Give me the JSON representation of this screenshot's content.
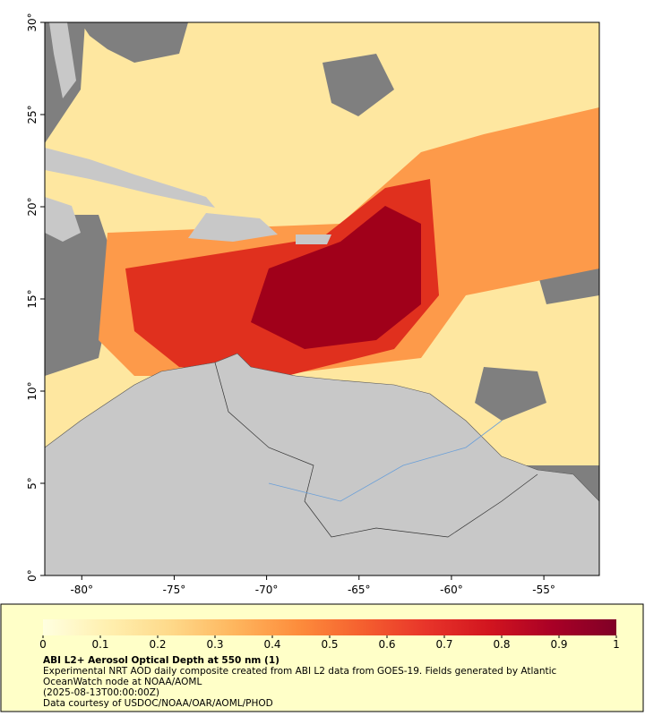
{
  "map": {
    "xlim": [
      -82,
      -52
    ],
    "ylim": [
      0,
      30
    ],
    "xticks": [
      {
        "value": -80,
        "label": "-80°"
      },
      {
        "value": -75,
        "label": "-75°"
      },
      {
        "value": -70,
        "label": "-70°"
      },
      {
        "value": -65,
        "label": "-65°"
      },
      {
        "value": -60,
        "label": "-60°"
      },
      {
        "value": -55,
        "label": "-55°"
      }
    ],
    "yticks": [
      {
        "value": 0,
        "label": "0°"
      },
      {
        "value": 5,
        "label": "5°"
      },
      {
        "value": 10,
        "label": "10°"
      },
      {
        "value": 15,
        "label": "15°"
      },
      {
        "value": 20,
        "label": "20°"
      },
      {
        "value": 25,
        "label": "25°"
      },
      {
        "value": 30,
        "label": "30°"
      }
    ]
  },
  "colorbar": {
    "range": [
      0,
      1
    ],
    "ticks": [
      0,
      0.1,
      0.2,
      0.3,
      0.4,
      0.5,
      0.6,
      0.7,
      0.8,
      0.9,
      1
    ],
    "colors": [
      "#ffffe0",
      "#fff0b0",
      "#fed98a",
      "#feb65e",
      "#fd8d3c",
      "#f5602f",
      "#e8352a",
      "#d2151f",
      "#a90026",
      "#800026"
    ]
  },
  "caption": {
    "title": "ABI L2+ Aerosol Optical Depth at 550 nm (1)",
    "description": "Experimental NRT AOD daily composite created from ABI L2 data from GOES-19. Fields generated by Atlantic OceanWatch node at NOAA/AOML",
    "date": "(2025-08-13T00:00:00Z)",
    "credit": "Data courtesy of USDOC/NOAA/OAR/AOML/PHOD"
  }
}
